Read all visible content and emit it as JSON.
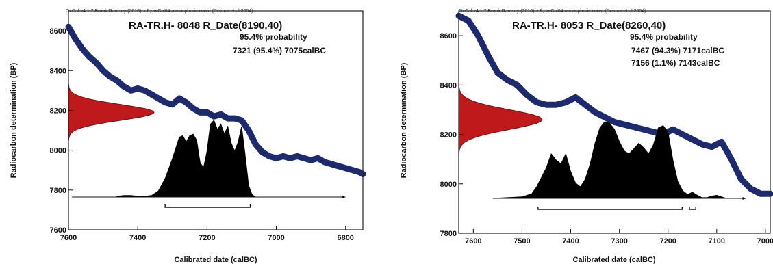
{
  "chart_data": [
    {
      "type": "area",
      "header": "OxCal v4.1.7 Bronk Ramsey (2010); r:5; IntCal04 atmospheric curve (Reimer et al 2004)",
      "title": "RA-TR.H- 8048 R_Date(8190,40)",
      "probability_label": "95.4% probability",
      "ranges": [
        "7321 (95.4%) 7075calBC"
      ],
      "xlabel": "Calibrated date (calBC)",
      "ylabel": "Radiocarbon determination (BP)",
      "xlim": [
        7600,
        6750
      ],
      "ylim": [
        7600,
        8700
      ],
      "xticks": [
        "7600",
        "7400",
        "7200",
        "7000",
        "6800"
      ],
      "yticks": [
        "7600",
        "7800",
        "8000",
        "8200",
        "8400",
        "8600"
      ],
      "radiocarbon_date": {
        "mean": 8190,
        "sigma": 40
      },
      "calibration_curve": {
        "x": [
          7600,
          7580,
          7560,
          7540,
          7520,
          7500,
          7480,
          7460,
          7440,
          7420,
          7400,
          7380,
          7360,
          7340,
          7320,
          7300,
          7280,
          7260,
          7240,
          7220,
          7200,
          7180,
          7160,
          7140,
          7120,
          7100,
          7080,
          7060,
          7040,
          7020,
          7000,
          6980,
          6960,
          6940,
          6920,
          6900,
          6880,
          6860,
          6840,
          6820,
          6800,
          6780,
          6760,
          6750
        ],
        "y": [
          8620,
          8560,
          8510,
          8470,
          8440,
          8400,
          8370,
          8350,
          8320,
          8300,
          8310,
          8300,
          8280,
          8260,
          8240,
          8230,
          8260,
          8240,
          8210,
          8190,
          8190,
          8170,
          8180,
          8160,
          8160,
          8150,
          8100,
          8030,
          7990,
          7970,
          7960,
          7970,
          7960,
          7970,
          7960,
          7950,
          7960,
          7940,
          7930,
          7920,
          7910,
          7900,
          7890,
          7880
        ]
      },
      "calibrated_distribution": {
        "x": [
          7460,
          7440,
          7420,
          7400,
          7380,
          7360,
          7340,
          7320,
          7300,
          7280,
          7270,
          7260,
          7250,
          7240,
          7230,
          7220,
          7210,
          7200,
          7190,
          7180,
          7170,
          7160,
          7150,
          7140,
          7130,
          7120,
          7110,
          7100,
          7090,
          7080,
          7070,
          7060
        ],
        "y": [
          0.01,
          0.02,
          0.02,
          0.01,
          0.01,
          0.02,
          0.08,
          0.25,
          0.5,
          0.78,
          0.8,
          0.72,
          0.8,
          0.82,
          0.74,
          0.45,
          0.38,
          0.6,
          0.95,
          1.0,
          0.88,
          0.95,
          0.82,
          0.92,
          0.7,
          0.6,
          0.72,
          0.92,
          0.55,
          0.15,
          0.03,
          0.0
        ]
      },
      "range_bars": [
        [
          7321,
          7075
        ]
      ]
    },
    {
      "type": "area",
      "header": "OxCal v4.1.7 Bronk Ramsey (2010); r:5; IntCal04 atmospheric curve (Reimer et al 2004)",
      "title": "RA-TR.H- 8053 R_Date(8260,40)",
      "probability_label": "95.4% probability",
      "ranges": [
        "7467 (94.3%) 7171calBC",
        "7156 (1.1%) 7143calBC"
      ],
      "xlabel": "Calibrated date (calBC)",
      "ylabel": "Radiocarbon determination (BP)",
      "xlim": [
        7630,
        6990
      ],
      "ylim": [
        7800,
        8700
      ],
      "xticks": [
        "7600",
        "7500",
        "7400",
        "7300",
        "7200",
        "7100",
        "7000"
      ],
      "yticks": [
        "7800",
        "8000",
        "8200",
        "8400",
        "8600"
      ],
      "radiocarbon_date": {
        "mean": 8260,
        "sigma": 40
      },
      "calibration_curve": {
        "x": [
          7630,
          7610,
          7590,
          7570,
          7550,
          7530,
          7510,
          7490,
          7470,
          7450,
          7430,
          7410,
          7390,
          7370,
          7350,
          7330,
          7310,
          7290,
          7270,
          7250,
          7230,
          7210,
          7190,
          7170,
          7150,
          7130,
          7110,
          7090,
          7070,
          7050,
          7030,
          7010,
          6990
        ],
        "y": [
          8680,
          8660,
          8600,
          8520,
          8450,
          8420,
          8400,
          8360,
          8330,
          8320,
          8320,
          8330,
          8350,
          8320,
          8290,
          8270,
          8250,
          8240,
          8230,
          8220,
          8210,
          8200,
          8220,
          8200,
          8180,
          8160,
          8150,
          8170,
          8100,
          8020,
          7980,
          7960,
          7960
        ]
      },
      "calibrated_distribution": {
        "x": [
          7560,
          7530,
          7500,
          7480,
          7470,
          7450,
          7440,
          7430,
          7420,
          7410,
          7400,
          7390,
          7380,
          7370,
          7360,
          7350,
          7340,
          7330,
          7320,
          7310,
          7300,
          7290,
          7280,
          7270,
          7260,
          7250,
          7240,
          7230,
          7220,
          7210,
          7200,
          7190,
          7180,
          7170,
          7160,
          7150,
          7140,
          7130,
          7120,
          7110,
          7100,
          7090,
          7080
        ],
        "y": [
          0.0,
          0.01,
          0.02,
          0.06,
          0.15,
          0.4,
          0.58,
          0.5,
          0.45,
          0.58,
          0.35,
          0.2,
          0.15,
          0.25,
          0.45,
          0.72,
          0.92,
          1.0,
          0.98,
          0.9,
          0.74,
          0.62,
          0.58,
          0.65,
          0.72,
          0.66,
          0.58,
          0.7,
          0.92,
          0.95,
          0.86,
          0.5,
          0.22,
          0.1,
          0.05,
          0.08,
          0.04,
          0.01,
          0.01,
          0.03,
          0.04,
          0.02,
          0.0
        ]
      },
      "range_bars": [
        [
          7467,
          7171
        ],
        [
          7156,
          7143
        ]
      ]
    }
  ]
}
